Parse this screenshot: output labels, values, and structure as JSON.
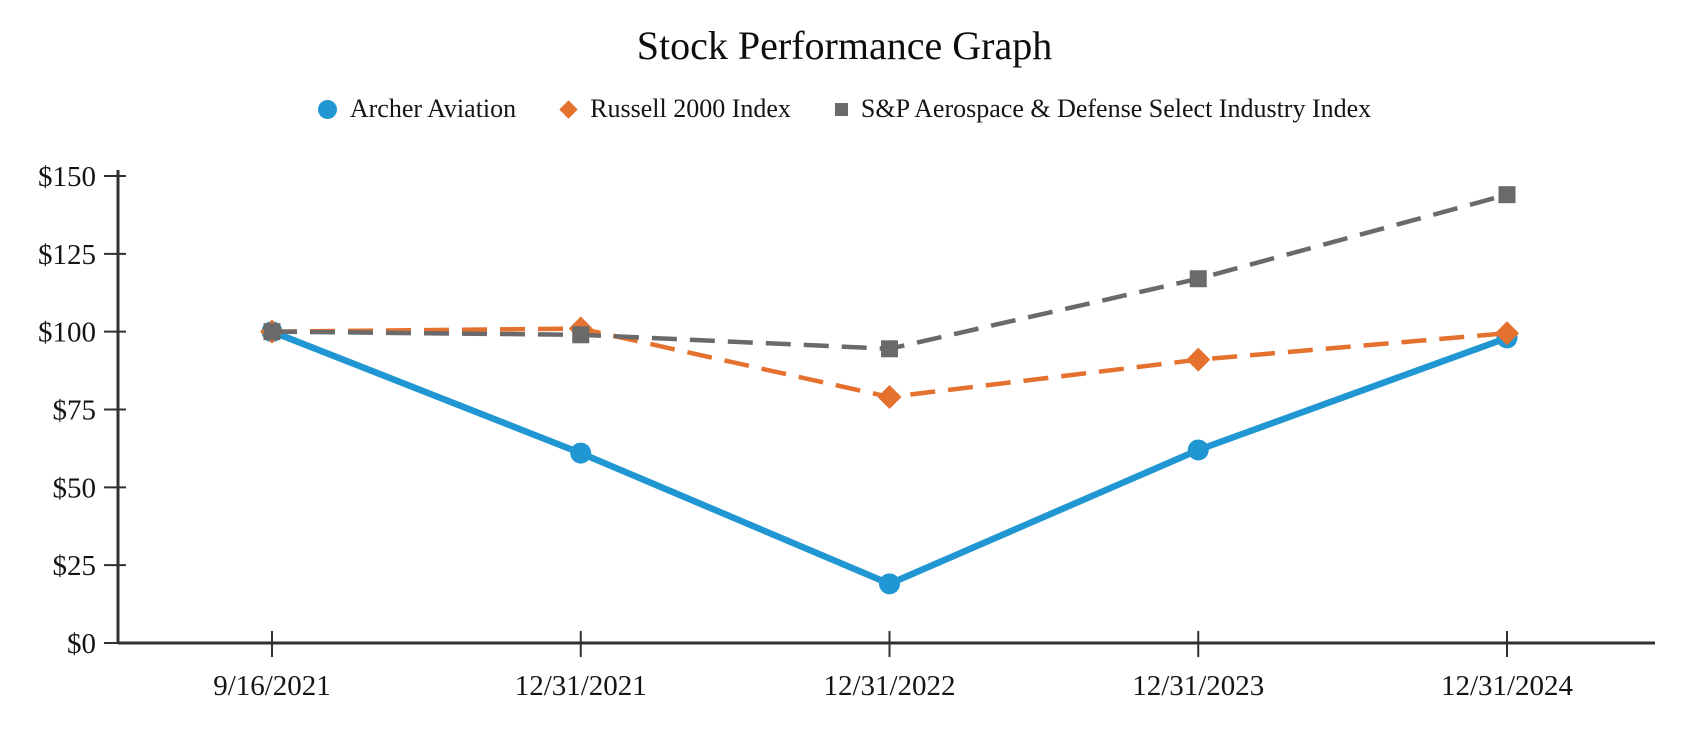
{
  "chart_data": {
    "type": "line",
    "title": "Stock Performance Graph",
    "xlabel": "",
    "ylabel": "",
    "grid": false,
    "legend_position": "top",
    "axis_color": "#303030",
    "categories": [
      "9/16/2021",
      "12/31/2021",
      "12/31/2022",
      "12/31/2023",
      "12/31/2024"
    ],
    "ylim": [
      0,
      150
    ],
    "ytick_interval": 25,
    "ytick_labels": [
      "$0",
      "$25",
      "$50",
      "$75",
      "$100",
      "$125",
      "$150"
    ],
    "series": [
      {
        "name": "Archer Aviation",
        "color": "#2096D3",
        "marker": "circle",
        "line_style": "solid",
        "values": [
          100,
          61,
          19,
          62,
          98
        ]
      },
      {
        "name": "Russell 2000 Index",
        "color": "#E4712E",
        "marker": "diamond",
        "line_style": "dashed",
        "values": [
          100,
          101,
          79,
          91,
          99.5
        ]
      },
      {
        "name": "S&P Aerospace & Defense Select Industry Index",
        "color": "#6A6A6A",
        "marker": "square",
        "line_style": "dashed",
        "values": [
          100,
          99,
          94.5,
          117,
          144
        ]
      }
    ]
  }
}
